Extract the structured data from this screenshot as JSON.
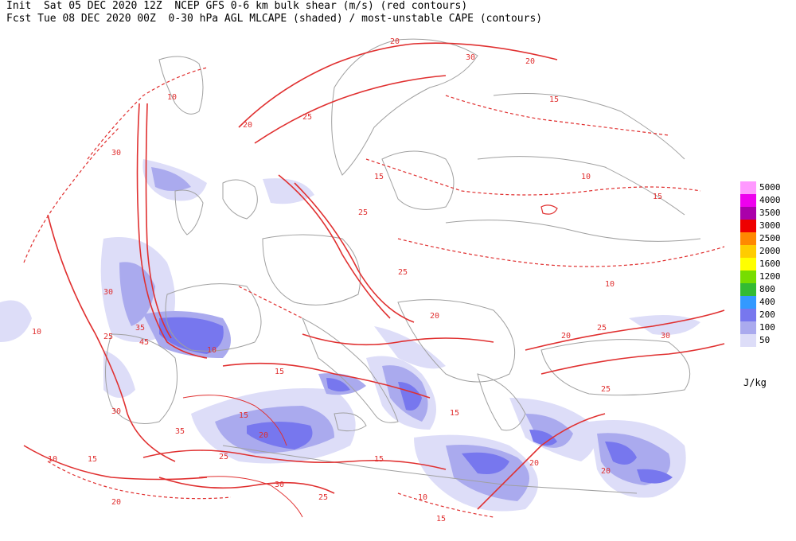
{
  "header": {
    "line1": "Init  Sat 05 DEC 2020 12Z  NCEP GFS 0-6 km bulk shear (m/s) (red contours)",
    "line2": "Fcst Tue 08 DEC 2020 00Z  0-30 hPa AGL MLCAPE (shaded) / most-unstable CAPE (contours)"
  },
  "legend": {
    "unit": "J/kg",
    "items": [
      {
        "label": "5000",
        "color": "#ff99ff"
      },
      {
        "label": "4000",
        "color": "#ee00ee"
      },
      {
        "label": "3500",
        "color": "#aa00aa"
      },
      {
        "label": "3000",
        "color": "#ee0000"
      },
      {
        "label": "2500",
        "color": "#ff8800"
      },
      {
        "label": "2000",
        "color": "#ffcc00"
      },
      {
        "label": "1600",
        "color": "#ffff00"
      },
      {
        "label": "1200",
        "color": "#77dd00"
      },
      {
        "label": "800",
        "color": "#33bb33"
      },
      {
        "label": "400",
        "color": "#3399ff"
      },
      {
        "label": "200",
        "color": "#7777ee"
      },
      {
        "label": "100",
        "color": "#aaaaee"
      },
      {
        "label": "50",
        "color": "#ddddf8"
      }
    ]
  },
  "colors": {
    "shear_contour": "#e03030",
    "coastline": "#a0a0a0",
    "cape_low": "#ddddf8",
    "cape_mid": "#aaaaee",
    "cape_high": "#7777ee"
  },
  "contour_labels": [
    "10",
    "15",
    "20",
    "25",
    "30",
    "35",
    "40",
    "45"
  ]
}
